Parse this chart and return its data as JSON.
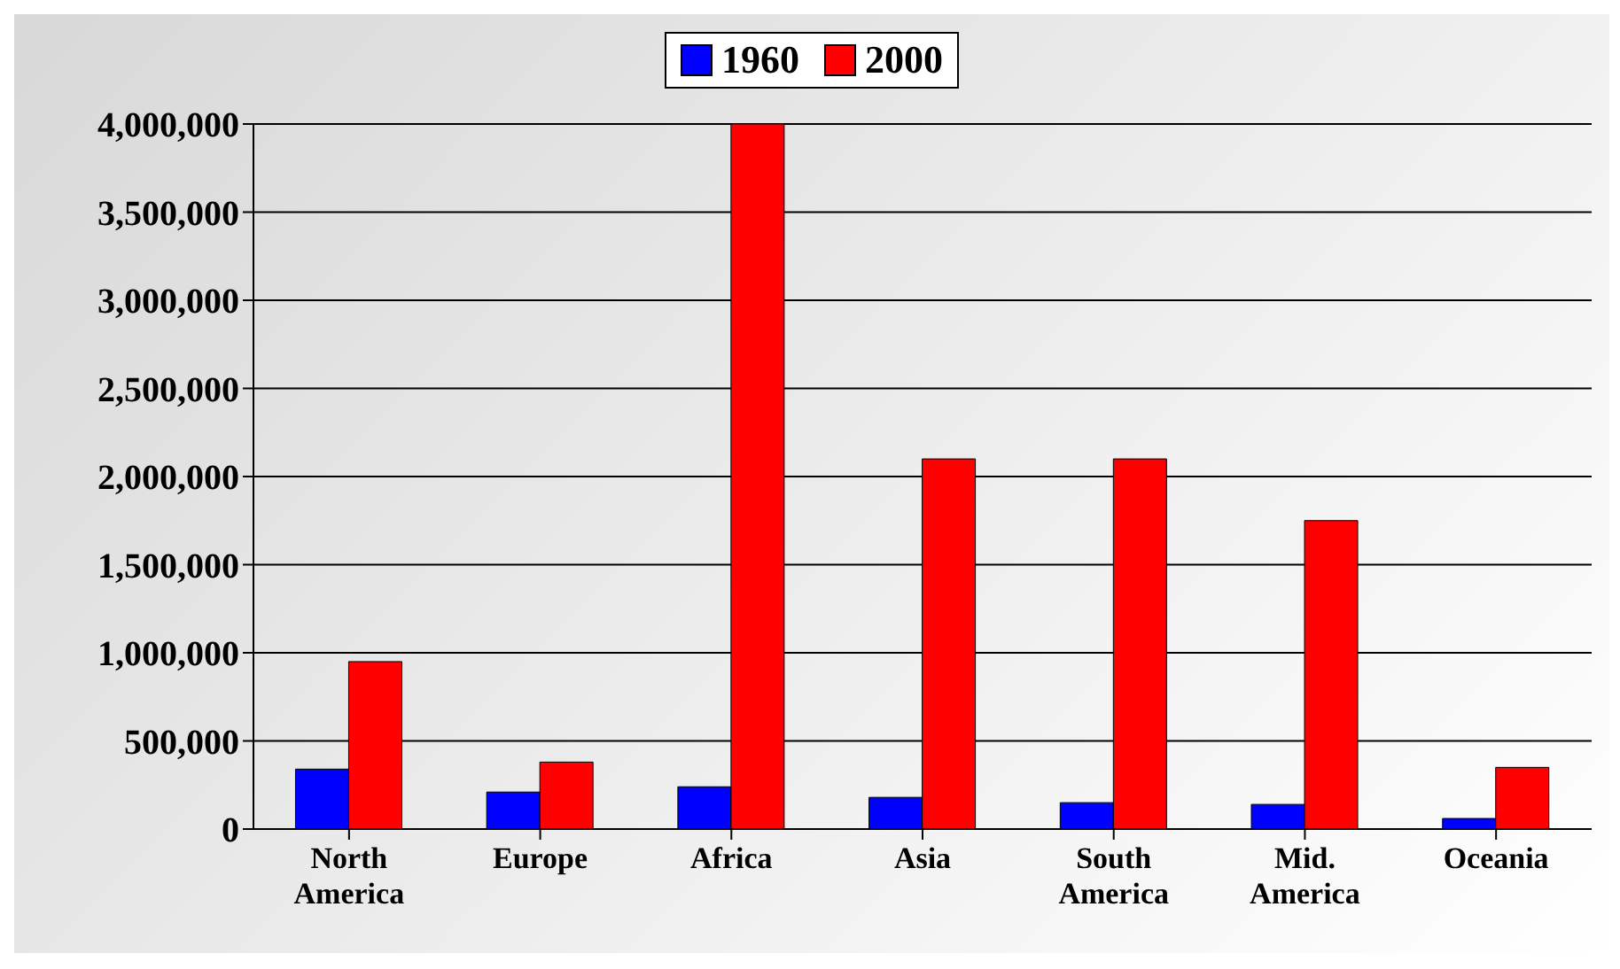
{
  "chart_data": {
    "type": "bar",
    "categories": [
      "North America",
      "Europe",
      "Africa",
      "Asia",
      "South America",
      "Mid. America",
      "Oceania"
    ],
    "series": [
      {
        "name": "1960",
        "color": "#0000ff",
        "values": [
          340000,
          210000,
          240000,
          180000,
          150000,
          140000,
          60000
        ]
      },
      {
        "name": "2000",
        "color": "#ff0000",
        "values": [
          950000,
          380000,
          4000000,
          2100000,
          2100000,
          1750000,
          350000
        ]
      }
    ],
    "ylim": [
      0,
      4000000
    ],
    "yticks": [
      0,
      {
        "value": 500000,
        "label": "500,000"
      },
      {
        "value": 1000000,
        "label": "1,000,000"
      },
      {
        "value": 1500000,
        "label": "1,500,000"
      },
      {
        "value": 2000000,
        "label": "2,000,000"
      },
      {
        "value": 2500000,
        "label": "2,500,000"
      },
      {
        "value": 3000000,
        "label": "3,000,000"
      },
      {
        "value": 3500000,
        "label": "3,500,000"
      },
      {
        "value": 4000000,
        "label": "4,000,000"
      }
    ],
    "grid": "y",
    "legend": "top"
  }
}
